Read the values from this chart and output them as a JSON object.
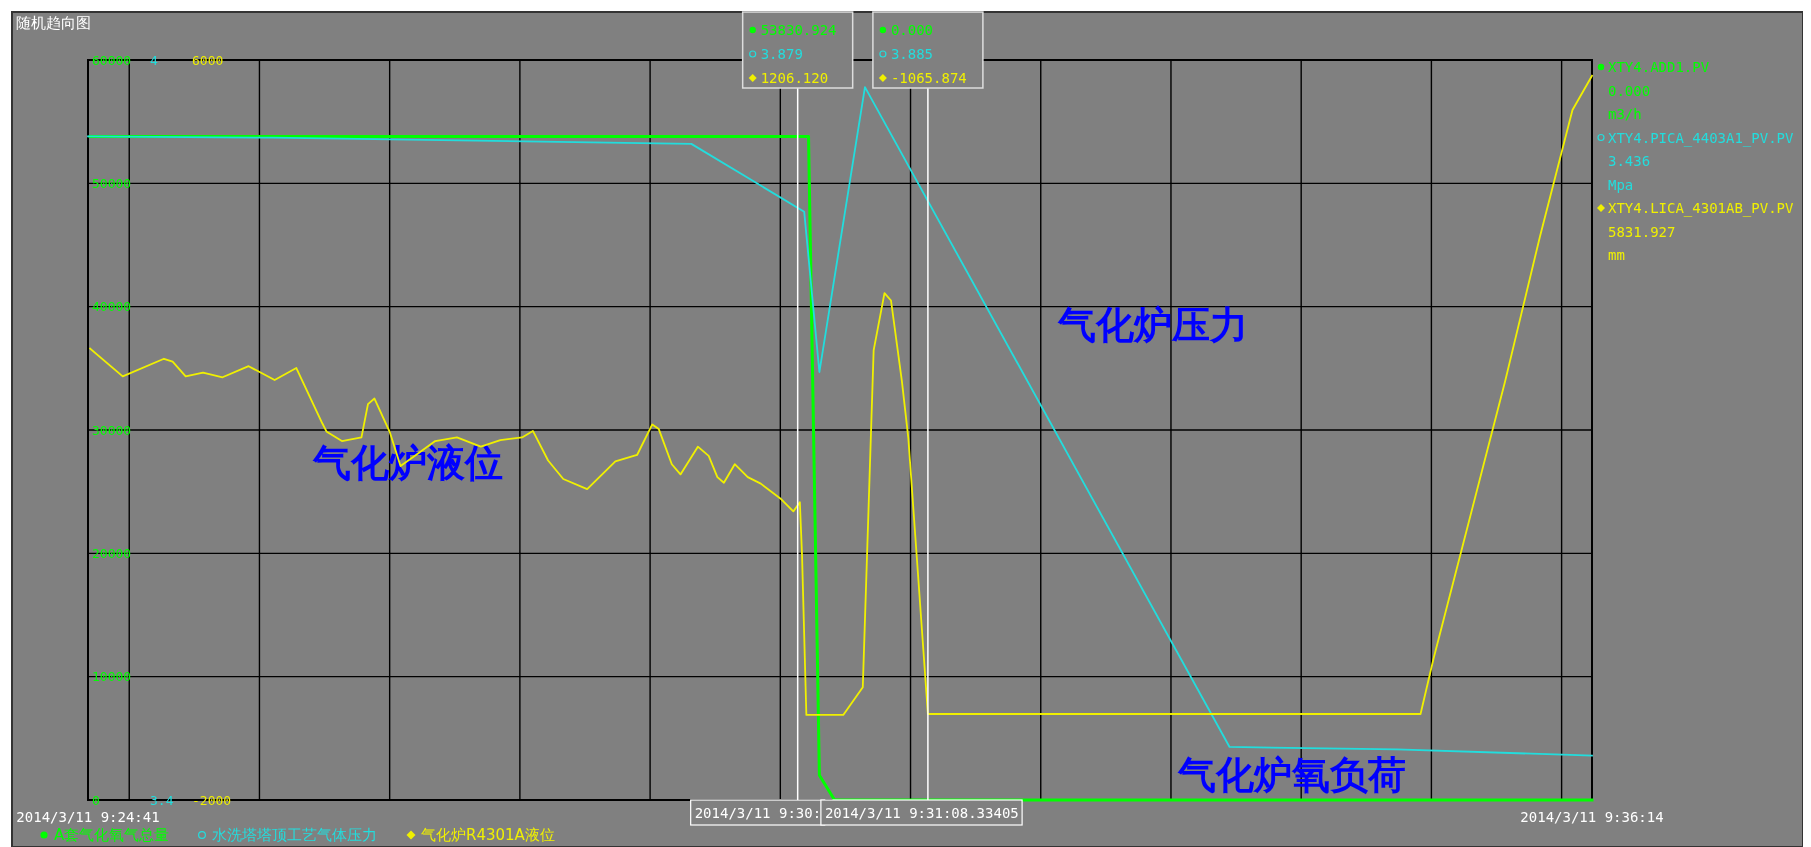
{
  "chart_data": {
    "type": "line",
    "title": "随机趋向图",
    "xlim": [
      "2014-03-11T09:24:41",
      "2014-03-11T09:36:14"
    ],
    "xticks": [
      {
        "value": "2014-03-11T09:24:41",
        "label": "2014/3/11 9:24:41"
      },
      {
        "value": "2014-03-11T09:25",
        "label": null
      },
      {
        "value": "2014-03-11T09:26",
        "label": null
      },
      {
        "value": "2014-03-11T09:27",
        "label": null
      },
      {
        "value": "2014-03-11T09:28",
        "label": null
      },
      {
        "value": "2014-03-11T09:29",
        "label": null
      },
      {
        "value": "2014-03-11T09:30",
        "label": null
      },
      {
        "value": "2014-03-11T09:31",
        "label": null
      },
      {
        "value": "2014-03-11T09:32",
        "label": null
      },
      {
        "value": "2014-03-11T09:33",
        "label": null
      },
      {
        "value": "2014-03-11T09:34",
        "label": null
      },
      {
        "value": "2014-03-11T09:35",
        "label": null
      },
      {
        "value": "2014-03-11T09:36",
        "label": null
      },
      {
        "value": "2014-03-11T09:36:14",
        "label": "2014/3/11 9:36:14"
      }
    ],
    "ylim": [
      0,
      60000
    ],
    "yticks": [
      0,
      10000,
      20000,
      30000,
      40000,
      50000,
      60000
    ],
    "y2lim": [
      3.4,
      4
    ],
    "y2ticks": [
      3.4,
      4
    ],
    "y3lim": [
      -2000,
      6000
    ],
    "y3ticks": [
      -2000,
      6000
    ],
    "grid": true,
    "legend": "bottom",
    "series": [
      {
        "name": "A套气化氧气总量",
        "color": "#00ff00",
        "x": [
          "2014-03-11T09:24:42",
          "2014-03-11T09:30:13",
          "2014-03-11T09:30:18",
          "2014-03-11T09:30:25",
          "2014-03-11T09:36:14"
        ],
        "values": [
          53800,
          53800,
          2000,
          0,
          0
        ]
      },
      {
        "name": "水洗塔塔顶工艺气体压力",
        "color": "#22dddd",
        "axis": "y2",
        "x": [
          "2014-03-11T09:24:41",
          "2014-03-11T09:26:06",
          "2014-03-11T09:29:19",
          "2014-03-11T09:30:11",
          "2014-03-11T09:30:18",
          "2014-03-11T09:30:39",
          "2014-03-11T09:33:27",
          "2014-03-11T09:34:44",
          "2014-03-11T09:36:14"
        ],
        "values": [
          3.938,
          3.937,
          3.932,
          3.877,
          3.747,
          3.978,
          3.443,
          3.441,
          3.436
        ]
      },
      {
        "name": "气化炉R4301A液位",
        "color": "#f0f000",
        "axis": "y3",
        "x": [
          "2014-03-11T09:24:42",
          "2014-03-11T09:24:57",
          "2014-03-11T09:25:16",
          "2014-03-11T09:25:20",
          "2014-03-11T09:25:26",
          "2014-03-11T09:25:34",
          "2014-03-11T09:25:43",
          "2014-03-11T09:25:55",
          "2014-03-11T09:26:07",
          "2014-03-11T09:26:17",
          "2014-03-11T09:26:29",
          "2014-03-11T09:26:31",
          "2014-03-11T09:26:38",
          "2014-03-11T09:26:47",
          "2014-03-11T09:26:50",
          "2014-03-11T09:26:53",
          "2014-03-11T09:27:00",
          "2014-03-11T09:27:05",
          "2014-03-11T09:27:11",
          "2014-03-11T09:27:21",
          "2014-03-11T09:27:31",
          "2014-03-11T09:27:42",
          "2014-03-11T09:27:51",
          "2014-03-11T09:28:01",
          "2014-03-11T09:28:06",
          "2014-03-11T09:28:13",
          "2014-03-11T09:28:20",
          "2014-03-11T09:28:31",
          "2014-03-11T09:28:44",
          "2014-03-11T09:28:54",
          "2014-03-11T09:29:01",
          "2014-03-11T09:29:04",
          "2014-03-11T09:29:10",
          "2014-03-11T09:29:14",
          "2014-03-11T09:29:22",
          "2014-03-11T09:29:27",
          "2014-03-11T09:29:31",
          "2014-03-11T09:29:34",
          "2014-03-11T09:29:39",
          "2014-03-11T09:29:45",
          "2014-03-11T09:29:51",
          "2014-03-11T09:30:00",
          "2014-03-11T09:30:06",
          "2014-03-11T09:30:09",
          "2014-03-11T09:30:10",
          "2014-03-11T09:30:12",
          "2014-03-11T09:30:29",
          "2014-03-11T09:30:38",
          "2014-03-11T09:30:43",
          "2014-03-11T09:30:48",
          "2014-03-11T09:30:51",
          "2014-03-11T09:30:56",
          "2014-03-11T09:30:59",
          "2014-03-11T09:31:08",
          "2014-03-11T09:34:55",
          "2014-03-11T09:35:01",
          "2014-03-11T09:35:34",
          "2014-03-11T09:35:50",
          "2014-03-11T09:36:05",
          "2014-03-11T09:36:14"
        ],
        "values": [
          2880,
          2580,
          2770,
          2740,
          2580,
          2620,
          2570,
          2690,
          2540,
          2670,
          2070,
          1980,
          1880,
          1920,
          2280,
          2340,
          1980,
          1610,
          1710,
          1880,
          1920,
          1820,
          1890,
          1920,
          1990,
          1670,
          1470,
          1360,
          1660,
          1730,
          2060,
          2010,
          1630,
          1520,
          1820,
          1720,
          1490,
          1430,
          1630,
          1490,
          1420,
          1260,
          1120,
          1220,
          650,
          -1080,
          -1080,
          -780,
          2860,
          3480,
          3400,
          2530,
          1910,
          -1070,
          -1070,
          -470,
          2530,
          4090,
          5460,
          5830
        ]
      }
    ],
    "ref_lines": [
      {
        "axis": "x",
        "value": "2014-03-11T09:30:08",
        "label": "2014/3/11 9:30:",
        "color": "#ffffff"
      },
      {
        "axis": "x",
        "value": "2014-03-11T09:31:08",
        "label": "2014/3/11 9:31:08.33405",
        "color": "#ffffff"
      }
    ],
    "annotations": [
      "53830.924",
      "3.879",
      "1206.120",
      "0.000",
      "3.885",
      "-1065.874",
      "XTY4.ADD1.PV",
      "0.000",
      "m3/h",
      "XTY4.PICA_4403A1_PV.PV",
      "3.436",
      "Mpa",
      "XTY4.LICA_4301AB_PV.PV",
      "5831.927",
      "mm",
      "气化炉压力",
      "气化炉液位",
      "气化炉氧负荷"
    ]
  }
}
